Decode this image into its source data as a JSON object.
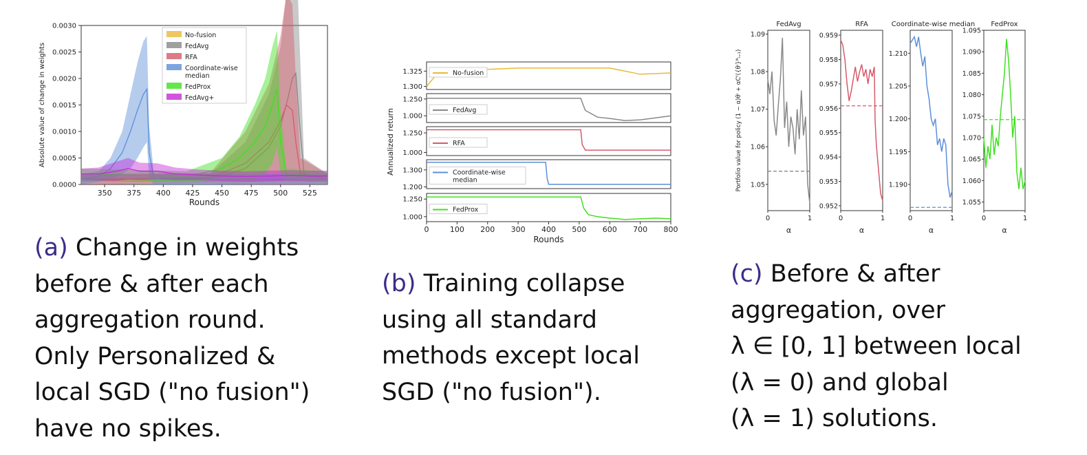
{
  "panel_a": {
    "caption_letter": "(a)",
    "caption_lines": [
      " Change in weights",
      "before & after each",
      "aggregation round.",
      "Only Personalized &",
      "local SGD (\"no fusion\")",
      "have no spikes."
    ]
  },
  "panel_b": {
    "caption_letter": "(b)",
    "caption_lines": [
      " Training collapse",
      "using all standard",
      "methods except local",
      "SGD (\"no fusion\")."
    ]
  },
  "panel_c": {
    "caption_letter": "(c)",
    "caption_lines": [
      " Before & after",
      "aggregation, over",
      "λ ∈ [0, 1] between local",
      "(λ = 0) and global",
      "(λ = 1) solutions."
    ]
  },
  "colors": {
    "no_fusion": "#e8b93a",
    "fedavg": "#888888",
    "rfa": "#d65a6a",
    "coord_median": "#5b8fd8",
    "fedprox": "#3fe01f",
    "fedavg_plus": "#c42ad8"
  },
  "chart_data": [
    {
      "type": "area",
      "title": "",
      "xlabel": "Rounds",
      "ylabel": "Absolute value of change in weights",
      "xlim": [
        330,
        540
      ],
      "ylim": [
        0,
        0.003
      ],
      "xticks": [
        "350",
        "375",
        "400",
        "425",
        "450",
        "475",
        "500",
        "525"
      ],
      "yticks": [
        "0.0000",
        "0.0005",
        "0.0010",
        "0.0015",
        "0.0020",
        "0.0025",
        "0.0030"
      ],
      "legend_position": "top-right",
      "series": [
        {
          "name": "No-fusion",
          "color_key": "no_fusion",
          "x": [
            330,
            350,
            375,
            400,
            425,
            450,
            475,
            500,
            525,
            540
          ],
          "y": [
            6e-05,
            7e-05,
            6e-05,
            7e-05,
            6e-05,
            7e-05,
            6e-05,
            7e-05,
            6e-05,
            6e-05
          ]
        },
        {
          "name": "FedAvg",
          "color_key": "fedavg",
          "x": [
            330,
            440,
            470,
            490,
            500,
            506,
            510,
            513,
            516,
            520,
            540
          ],
          "y": [
            8e-05,
            0.0001,
            0.0003,
            0.0007,
            0.0011,
            0.0016,
            0.002,
            0.0021,
            0.0012,
            0.0002,
            0.0001
          ],
          "band": [
            0.0001,
            0.0001,
            0.0005,
            0.001,
            0.0015,
            0.0022,
            0.0026,
            0.0026,
            0.0016,
            0.0003,
            0.0001
          ]
        },
        {
          "name": "RFA",
          "color_key": "rfa",
          "x": [
            330,
            440,
            470,
            490,
            500,
            505,
            510,
            513,
            517,
            540
          ],
          "y": [
            0.0001,
            0.00012,
            0.0004,
            0.0008,
            0.0012,
            0.0015,
            0.0014,
            0.0008,
            0.0002,
            0.0001
          ],
          "band": [
            0.0001,
            0.0001,
            0.0006,
            0.0011,
            0.0016,
            0.0021,
            0.002,
            0.0012,
            0.0003,
            0.0001
          ]
        },
        {
          "name": "Coordinate-wise\nmedian",
          "color_key": "coord_median",
          "x": [
            330,
            345,
            355,
            365,
            372,
            378,
            383,
            386,
            388,
            392,
            400,
            540
          ],
          "y": [
            0.0001,
            0.00015,
            0.0003,
            0.0006,
            0.001,
            0.0014,
            0.0017,
            0.0018,
            0.0006,
            0.0001,
            0.0001,
            0.0001
          ],
          "band": [
            0.0001,
            0.0001,
            0.0002,
            0.0004,
            0.0007,
            0.0009,
            0.001,
            0.001,
            0.0005,
            0.0001,
            0.0001,
            0.0001
          ]
        },
        {
          "name": "FedProx",
          "color_key": "fedprox",
          "x": [
            330,
            420,
            450,
            465,
            478,
            487,
            493,
            497,
            500,
            505,
            540
          ],
          "y": [
            0.0002,
            0.00015,
            0.0003,
            0.0005,
            0.0008,
            0.0011,
            0.0015,
            0.0018,
            0.0008,
            0.0002,
            0.00015
          ],
          "band": [
            0.0001,
            0.0001,
            0.0002,
            0.0004,
            0.0007,
            0.0009,
            0.0011,
            0.0011,
            0.0006,
            0.0001,
            0.0001
          ]
        },
        {
          "name": "FedAvg+",
          "color_key": "fedavg_plus",
          "x": [
            330,
            345,
            360,
            370,
            380,
            395,
            410,
            430,
            450,
            470,
            490,
            510,
            525,
            540
          ],
          "y": [
            0.0002,
            0.0002,
            0.00025,
            0.0003,
            0.00025,
            0.00025,
            0.0002,
            0.00018,
            0.00016,
            0.00015,
            0.00016,
            0.00017,
            0.00016,
            0.00016
          ],
          "band": [
            0.0001,
            0.00012,
            0.00018,
            0.0002,
            0.00016,
            0.00015,
            0.00012,
            0.0001,
            0.0001,
            0.0001,
            0.0001,
            0.0001,
            0.0001,
            0.0001
          ]
        }
      ]
    },
    {
      "type": "line",
      "title": "",
      "xlabel": "Rounds",
      "ylabel": "Annualized return",
      "xlim": [
        0,
        800
      ],
      "xticks": [
        "0",
        "100",
        "200",
        "300",
        "400",
        "500",
        "600",
        "700",
        "800"
      ],
      "subplots": [
        {
          "name": "No-fusion",
          "color_key": "no_fusion",
          "ylim": [
            1.295,
            1.34
          ],
          "yticks": [
            "1.300",
            "1.325"
          ],
          "ytick_values": [
            1.3,
            1.325
          ],
          "x": [
            0,
            30,
            60,
            100,
            150,
            200,
            300,
            400,
            500,
            600,
            700,
            800
          ],
          "y": [
            1.3,
            1.318,
            1.325,
            1.325,
            1.322,
            1.328,
            1.33,
            1.33,
            1.33,
            1.33,
            1.32,
            1.322
          ]
        },
        {
          "name": "FedAvg",
          "color_key": "fedavg",
          "ylim": [
            0.9,
            1.33
          ],
          "yticks": [
            "1.000",
            "1.250"
          ],
          "ytick_values": [
            1.0,
            1.25
          ],
          "x": [
            0,
            100,
            200,
            300,
            400,
            505,
            510,
            520,
            560,
            600,
            650,
            700,
            750,
            800
          ],
          "y": [
            1.26,
            1.26,
            1.26,
            1.26,
            1.26,
            1.26,
            1.2,
            1.08,
            0.98,
            0.96,
            0.93,
            0.94,
            0.97,
            1.0
          ]
        },
        {
          "name": "RFA",
          "color_key": "rfa",
          "ylim": [
            0.96,
            1.33
          ],
          "yticks": [
            "1.000",
            "1.250"
          ],
          "ytick_values": [
            1.0,
            1.25
          ],
          "x": [
            0,
            100,
            200,
            300,
            400,
            505,
            510,
            520,
            600,
            700,
            800
          ],
          "y": [
            1.29,
            1.29,
            1.29,
            1.29,
            1.29,
            1.29,
            1.1,
            1.03,
            1.03,
            1.03,
            1.03
          ]
        },
        {
          "name": "Coordinate-wise\nmedian",
          "color_key": "coord_median",
          "ylim": [
            1.19,
            1.36
          ],
          "yticks": [
            "1.200",
            "1.300"
          ],
          "ytick_values": [
            1.2,
            1.3
          ],
          "x": [
            0,
            100,
            200,
            300,
            390,
            395,
            400,
            500,
            600,
            700,
            800
          ],
          "y": [
            1.345,
            1.345,
            1.345,
            1.345,
            1.345,
            1.25,
            1.215,
            1.215,
            1.215,
            1.215,
            1.215
          ]
        },
        {
          "name": "FedProx",
          "color_key": "fedprox",
          "ylim": [
            0.93,
            1.33
          ],
          "yticks": [
            "1.000",
            "1.250"
          ],
          "ytick_values": [
            1.0,
            1.25
          ],
          "x": [
            0,
            100,
            200,
            300,
            400,
            505,
            515,
            530,
            560,
            600,
            650,
            700,
            750,
            800
          ],
          "y": [
            1.28,
            1.28,
            1.28,
            1.28,
            1.28,
            1.28,
            1.12,
            1.03,
            1.0,
            0.98,
            0.96,
            0.97,
            0.98,
            0.97
          ]
        }
      ]
    },
    {
      "type": "line",
      "title": "",
      "xlabel": "α",
      "ylabel": "Portfolio value for policy (1 − α)θⁱ + αCᶠ({θⁱ}ᴺᵢ₌₁)",
      "xlim": [
        0,
        1
      ],
      "xticks": [
        "0",
        "1"
      ],
      "subplots": [
        {
          "name": "FedAvg",
          "color_key": "fedavg",
          "ylim": [
            1.043,
            1.091
          ],
          "yticks": [
            "1.05",
            "1.06",
            "1.07",
            "1.08",
            "1.09"
          ],
          "ytick_values": [
            1.05,
            1.06,
            1.07,
            1.08,
            1.09
          ],
          "baseline": 1.0535,
          "x": [
            0,
            0.05,
            0.1,
            0.15,
            0.2,
            0.25,
            0.3,
            0.35,
            0.4,
            0.45,
            0.5,
            0.55,
            0.6,
            0.65,
            0.7,
            0.75,
            0.8,
            0.85,
            0.9,
            0.95,
            1.0
          ],
          "y": [
            1.078,
            1.074,
            1.08,
            1.067,
            1.063,
            1.071,
            1.078,
            1.089,
            1.065,
            1.072,
            1.06,
            1.068,
            1.065,
            1.058,
            1.07,
            1.062,
            1.075,
            1.063,
            1.068,
            1.05,
            1.045
          ]
        },
        {
          "name": "RFA",
          "color_key": "rfa",
          "ylim": [
            0.9518,
            0.9592
          ],
          "yticks": [
            "0.952",
            "0.953",
            "0.954",
            "0.955",
            "0.956",
            "0.957",
            "0.958",
            "0.959"
          ],
          "ytick_values": [
            0.952,
            0.953,
            0.954,
            0.955,
            0.956,
            0.957,
            0.958,
            0.959
          ],
          "baseline": 0.9561,
          "x": [
            0,
            0.05,
            0.1,
            0.15,
            0.2,
            0.25,
            0.3,
            0.35,
            0.4,
            0.45,
            0.5,
            0.55,
            0.6,
            0.65,
            0.7,
            0.75,
            0.8,
            0.82,
            0.85,
            0.9,
            0.95,
            1.0
          ],
          "y": [
            0.9588,
            0.9586,
            0.958,
            0.957,
            0.9563,
            0.9567,
            0.9572,
            0.9577,
            0.9571,
            0.9575,
            0.9578,
            0.9573,
            0.9576,
            0.957,
            0.9576,
            0.9573,
            0.9577,
            0.9555,
            0.9545,
            0.9535,
            0.9525,
            0.9522
          ]
        },
        {
          "name": "Coordinate-wise median",
          "color_key": "coord_median",
          "ylim": [
            1.186,
            1.2135
          ],
          "yticks": [
            "1.190",
            "1.195",
            "1.200",
            "1.205",
            "1.210"
          ],
          "ytick_values": [
            1.19,
            1.195,
            1.2,
            1.205,
            1.21
          ],
          "baseline": 1.1865,
          "x": [
            0,
            0.05,
            0.1,
            0.15,
            0.2,
            0.25,
            0.3,
            0.35,
            0.4,
            0.45,
            0.5,
            0.55,
            0.6,
            0.65,
            0.7,
            0.75,
            0.8,
            0.85,
            0.9,
            0.95,
            1.0
          ],
          "y": [
            1.2115,
            1.212,
            1.2125,
            1.211,
            1.2125,
            1.21,
            1.208,
            1.2095,
            1.205,
            1.203,
            1.2,
            1.199,
            1.2,
            1.196,
            1.197,
            1.195,
            1.197,
            1.196,
            1.19,
            1.188,
            1.189
          ]
        },
        {
          "name": "FedProx",
          "color_key": "fedprox",
          "ylim": [
            1.053,
            1.095
          ],
          "yticks": [
            "1.055",
            "1.060",
            "1.065",
            "1.070",
            "1.075",
            "1.080",
            "1.085",
            "1.090",
            "1.095"
          ],
          "ytick_values": [
            1.055,
            1.06,
            1.065,
            1.07,
            1.075,
            1.08,
            1.085,
            1.09,
            1.095
          ],
          "baseline": 1.0742,
          "x": [
            0,
            0.05,
            0.1,
            0.15,
            0.2,
            0.25,
            0.3,
            0.35,
            0.4,
            0.45,
            0.5,
            0.55,
            0.6,
            0.65,
            0.7,
            0.75,
            0.8,
            0.85,
            0.9,
            0.95,
            1.0
          ],
          "y": [
            1.07,
            1.063,
            1.068,
            1.065,
            1.073,
            1.066,
            1.07,
            1.068,
            1.075,
            1.08,
            1.085,
            1.093,
            1.088,
            1.08,
            1.07,
            1.075,
            1.062,
            1.058,
            1.063,
            1.058,
            1.06
          ]
        }
      ]
    }
  ]
}
